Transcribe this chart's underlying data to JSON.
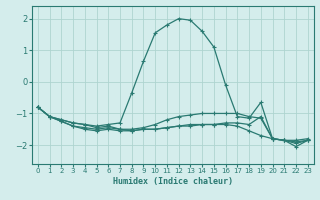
{
  "xlabel": "Humidex (Indice chaleur)",
  "background_color": "#d4edec",
  "grid_color": "#aed4d0",
  "line_color": "#2a7a72",
  "xlim": [
    -0.5,
    23.5
  ],
  "ylim": [
    -2.6,
    2.4
  ],
  "yticks": [
    -2,
    -1,
    0,
    1,
    2
  ],
  "xticks": [
    0,
    1,
    2,
    3,
    4,
    5,
    6,
    7,
    8,
    9,
    10,
    11,
    12,
    13,
    14,
    15,
    16,
    17,
    18,
    19,
    20,
    21,
    22,
    23
  ],
  "series": [
    {
      "x": [
        0,
        1,
        2,
        3,
        4,
        5,
        6,
        7,
        8,
        9,
        10,
        11,
        12,
        13,
        14,
        15,
        16,
        17,
        18,
        19,
        20,
        21,
        22,
        23
      ],
      "y": [
        -0.8,
        -1.1,
        -1.2,
        -1.3,
        -1.35,
        -1.4,
        -1.35,
        -1.3,
        -0.35,
        0.65,
        1.55,
        1.8,
        2.0,
        1.95,
        1.6,
        1.1,
        -0.1,
        -1.1,
        -1.15,
        -0.65,
        -1.8,
        -1.85,
        -1.85,
        -1.8
      ]
    },
    {
      "x": [
        0,
        1,
        2,
        3,
        4,
        5,
        6,
        7,
        8,
        9,
        10,
        11,
        12,
        13,
        14,
        15,
        16,
        17,
        18,
        19,
        20,
        21,
        22,
        23
      ],
      "y": [
        -0.8,
        -1.1,
        -1.2,
        -1.3,
        -1.35,
        -1.45,
        -1.4,
        -1.5,
        -1.5,
        -1.45,
        -1.35,
        -1.2,
        -1.1,
        -1.05,
        -1.0,
        -1.0,
        -1.0,
        -1.0,
        -1.1,
        -1.15,
        -1.8,
        -1.85,
        -1.9,
        -1.85
      ]
    },
    {
      "x": [
        0,
        1,
        2,
        3,
        4,
        5,
        6,
        7,
        8,
        9,
        10,
        11,
        12,
        13,
        14,
        15,
        16,
        17,
        18,
        19,
        20,
        21,
        22,
        23
      ],
      "y": [
        -0.8,
        -1.1,
        -1.25,
        -1.4,
        -1.45,
        -1.5,
        -1.45,
        -1.5,
        -1.55,
        -1.5,
        -1.5,
        -1.45,
        -1.4,
        -1.4,
        -1.35,
        -1.35,
        -1.35,
        -1.4,
        -1.55,
        -1.7,
        -1.8,
        -1.85,
        -1.95,
        -1.85
      ]
    },
    {
      "x": [
        0,
        1,
        2,
        3,
        4,
        5,
        6,
        7,
        8,
        9,
        10,
        11,
        12,
        13,
        14,
        15,
        16,
        17,
        18,
        19,
        20,
        21,
        22,
        23
      ],
      "y": [
        -0.8,
        -1.1,
        -1.25,
        -1.4,
        -1.5,
        -1.55,
        -1.5,
        -1.55,
        -1.55,
        -1.5,
        -1.5,
        -1.45,
        -1.4,
        -1.35,
        -1.35,
        -1.35,
        -1.3,
        -1.3,
        -1.35,
        -1.1,
        -1.8,
        -1.85,
        -2.05,
        -1.85
      ]
    }
  ]
}
